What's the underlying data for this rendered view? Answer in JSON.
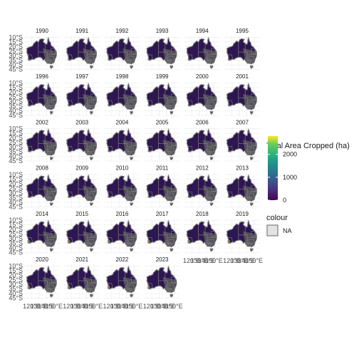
{
  "chart_data": {
    "type": "choropleth-facet",
    "years": [
      "1990",
      "1991",
      "1992",
      "1993",
      "1994",
      "1995",
      "1996",
      "1997",
      "1998",
      "1999",
      "2000",
      "2001",
      "2002",
      "2003",
      "2004",
      "2005",
      "2006",
      "2007",
      "2008",
      "2009",
      "2010",
      "2011",
      "2012",
      "2013",
      "2014",
      "2015",
      "2016",
      "2017",
      "2018",
      "2019",
      "2020",
      "2021",
      "2022",
      "2023"
    ],
    "y_tick_labels": [
      "10°S",
      "15°S",
      "20°S",
      "25°S",
      "30°S",
      "35°S",
      "40°S",
      "45°S"
    ],
    "x_tick_labels": [
      "120°E",
      "130°E",
      "140°E",
      "150°E"
    ],
    "x_tick_values": [
      120,
      130,
      140,
      150
    ],
    "y_tick_values": [
      -10,
      -15,
      -20,
      -25,
      -30,
      -35,
      -40,
      -45
    ],
    "lon_range": [
      110,
      158
    ],
    "lat_range": [
      -46,
      -9
    ],
    "fill_legend": {
      "title": "Total Area Cropped (ha)",
      "ticks": [
        0,
        1000,
        2000
      ],
      "range": [
        0,
        2800
      ],
      "palette": "viridis"
    },
    "colour_legend": {
      "title": "colour",
      "entries": [
        "NA"
      ]
    },
    "region_values": {
      "2001": 250,
      "2003": 250,
      "2004": 350,
      "2005": 250,
      "2007": 150
    },
    "grid": true
  },
  "colors": {
    "base_fill": "#2d1651",
    "na_fill": "#5a5a5a",
    "border": "#7f7f7f",
    "grid": "#ebebeb"
  }
}
